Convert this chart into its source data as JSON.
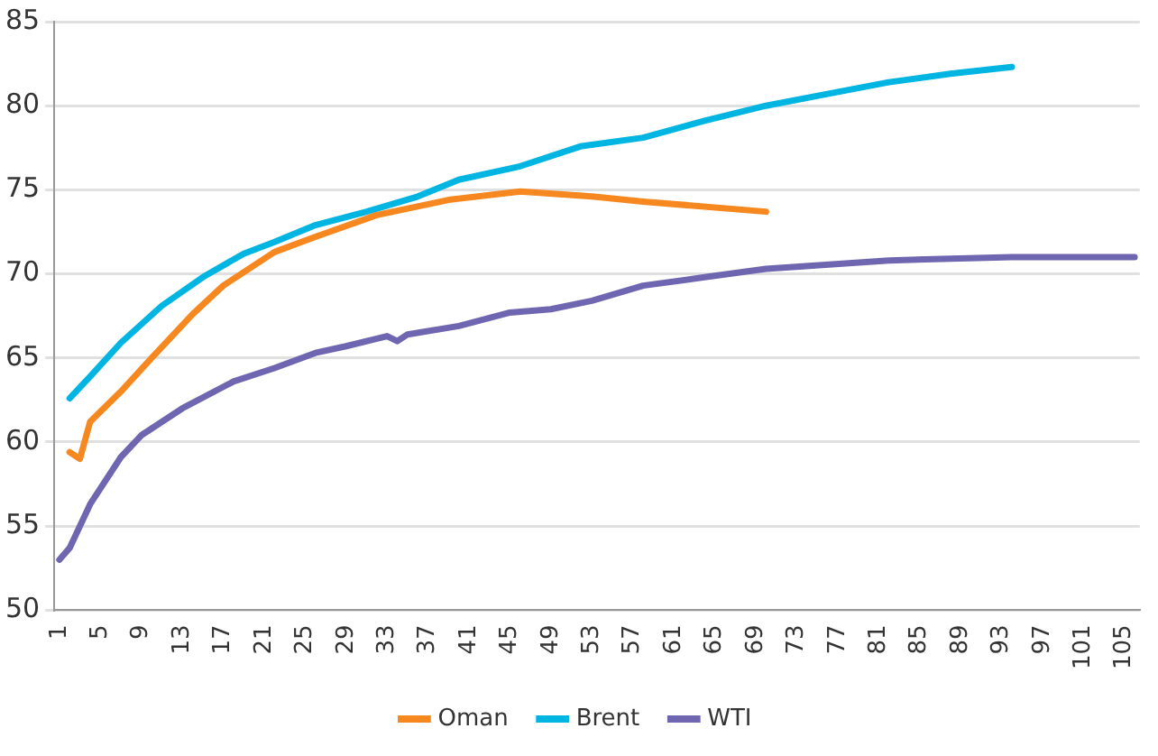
{
  "chart_data": {
    "type": "line",
    "xlim": [
      0.5,
      106.5
    ],
    "xticks": [
      1,
      5,
      9,
      13,
      17,
      21,
      25,
      29,
      33,
      37,
      41,
      45,
      49,
      53,
      57,
      61,
      65,
      69,
      73,
      77,
      81,
      85,
      89,
      93,
      97,
      101,
      105
    ],
    "ylim": [
      50,
      85
    ],
    "yticks": [
      50,
      55,
      60,
      65,
      70,
      75,
      80,
      85
    ],
    "grid": "y",
    "legend": "bottom",
    "marker": "none",
    "line_style": "solid",
    "series": [
      {
        "name": "Oman",
        "color": "#f7871f",
        "x": [
          2,
          3,
          4,
          7,
          10,
          14,
          17,
          22,
          26,
          32,
          39,
          46,
          53,
          58,
          70
        ],
        "values": [
          59.4,
          59.0,
          61.2,
          63.0,
          65.0,
          67.6,
          69.3,
          71.3,
          72.2,
          73.5,
          74.4,
          74.9,
          74.6,
          74.3,
          73.7
        ]
      },
      {
        "name": "Brent",
        "color": "#00b5e2",
        "x": [
          2,
          4,
          7,
          11,
          15,
          19,
          22,
          26,
          31,
          36,
          40,
          46,
          52,
          58,
          64,
          70,
          76,
          82,
          88,
          94
        ],
        "values": [
          62.6,
          63.9,
          65.9,
          68.1,
          69.8,
          71.2,
          71.9,
          72.9,
          73.7,
          74.6,
          75.6,
          76.4,
          77.6,
          78.1,
          79.1,
          80.0,
          80.7,
          81.4,
          81.9,
          82.3
        ]
      },
      {
        "name": "WTI",
        "color": "#6e66b0",
        "x": [
          1,
          2,
          4,
          7,
          9,
          13,
          18,
          22,
          26,
          29,
          33,
          34,
          35,
          40,
          45,
          49,
          53,
          58,
          64,
          70,
          82,
          94,
          106
        ],
        "values": [
          53.0,
          53.7,
          56.3,
          59.1,
          60.4,
          62.0,
          63.6,
          64.4,
          65.3,
          65.7,
          66.3,
          66.0,
          66.4,
          66.9,
          67.7,
          67.9,
          68.4,
          69.3,
          69.8,
          70.3,
          70.8,
          71.0,
          71.0
        ]
      }
    ]
  }
}
